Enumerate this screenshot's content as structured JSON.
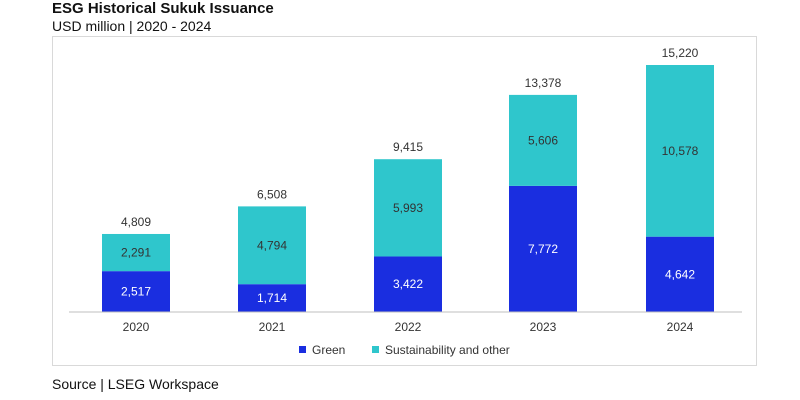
{
  "header": {
    "title": "ESG Historical Sukuk Issuance",
    "subtitle": "USD million | 2020 - 2024"
  },
  "footer": {
    "source": "Source | LSEG Workspace"
  },
  "colors": {
    "green": "#1a2ee0",
    "sustainability": "#2fc6cc",
    "axis": "#bfbfbf",
    "text": "#333333"
  },
  "chart_data": {
    "type": "bar",
    "stacked": true,
    "title": "ESG Historical Sukuk Issuance",
    "subtitle": "USD million | 2020 - 2024",
    "xlabel": "",
    "ylabel": "",
    "categories": [
      "2020",
      "2021",
      "2022",
      "2023",
      "2024"
    ],
    "series": [
      {
        "name": "Green",
        "values": [
          2517,
          1714,
          3422,
          7772,
          4642
        ],
        "labels": [
          "2,517",
          "1,714",
          "3,422",
          "7,772",
          "4,642"
        ]
      },
      {
        "name": "Sustainability and other",
        "values": [
          2291,
          4794,
          5993,
          5606,
          10578
        ],
        "labels": [
          "2,291",
          "4,794",
          "5,993",
          "5,606",
          "10,578"
        ]
      }
    ],
    "totals": [
      4809,
      6508,
      9415,
      13378,
      15220
    ],
    "total_labels": [
      "4,809",
      "6,508",
      "9,415",
      "13,378",
      "15,220"
    ],
    "ylim": [
      0,
      15220
    ],
    "grid": false,
    "legend_position": "bottom-center"
  }
}
